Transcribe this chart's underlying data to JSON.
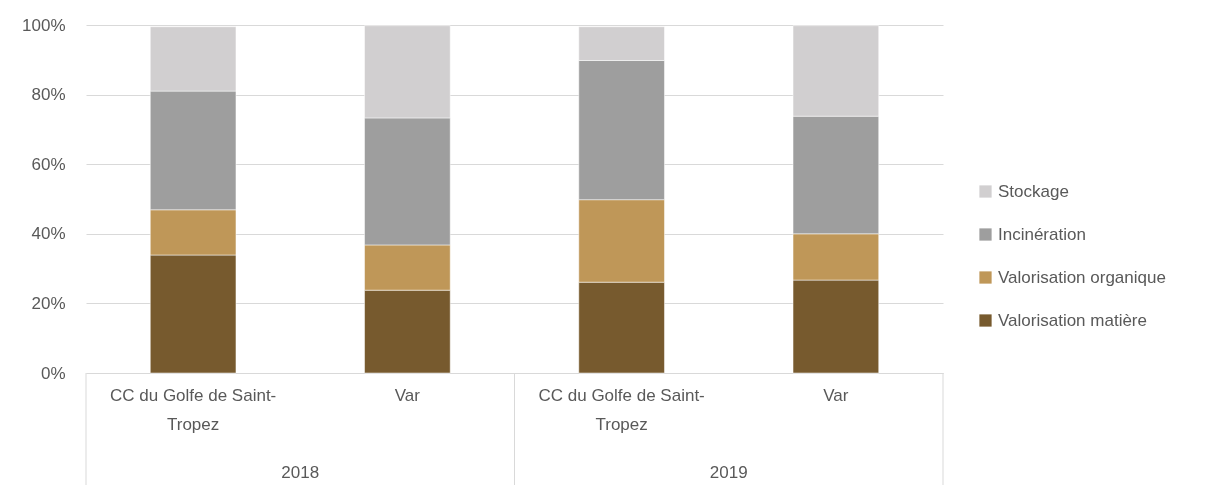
{
  "chart_data": {
    "type": "bar",
    "stacked": true,
    "categories": [
      "CC du Golfe de Saint-Tropez",
      "Var",
      "CC du Golfe de Saint-Tropez",
      "Var"
    ],
    "annotations": [
      "2018",
      "2019"
    ],
    "series": [
      {
        "name": "Valorisation matière",
        "color": "#775a2e",
        "values": [
          33.9,
          23.8,
          26.1,
          26.7
        ]
      },
      {
        "name": "Valorisation organique",
        "color": "#bf9758",
        "values": [
          13.0,
          13.0,
          23.7,
          13.3
        ]
      },
      {
        "name": "Incinération",
        "color": "#9e9e9e",
        "values": [
          34.1,
          36.5,
          40.0,
          33.8
        ]
      },
      {
        "name": "Stockage",
        "color": "#d1cfd0",
        "values": [
          18.5,
          26.5,
          9.7,
          26.0
        ]
      }
    ],
    "ylim": [
      0,
      100
    ],
    "yticks": [
      {
        "value": 0,
        "label": "0%"
      },
      {
        "value": 20,
        "label": "20%"
      },
      {
        "value": 40,
        "label": "40%"
      },
      {
        "value": 60,
        "label": "60%"
      },
      {
        "value": 80,
        "label": "80%"
      },
      {
        "value": 100,
        "label": "100%"
      }
    ],
    "grid": "y",
    "legend": "right"
  }
}
